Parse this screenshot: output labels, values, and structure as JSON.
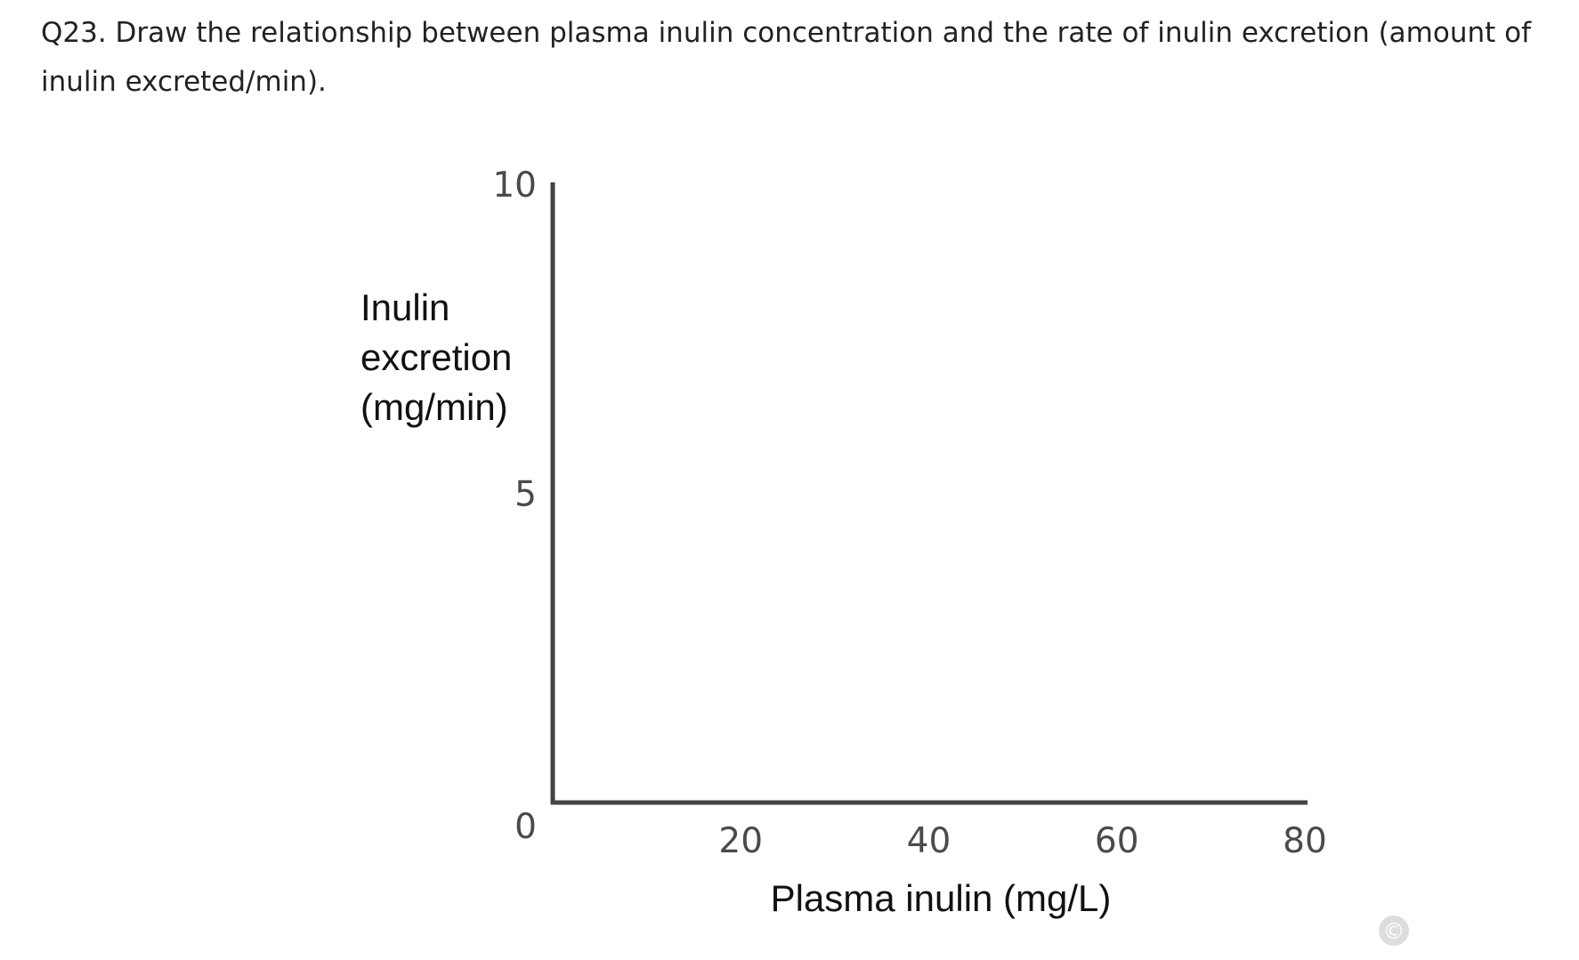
{
  "question": {
    "text": "Q23. Draw the relationship between plasma inulin concentration and the rate of inulin excretion (amount of inulin excreted/min)."
  },
  "chart_data": {
    "type": "line",
    "title": "",
    "xlabel": "Plasma inulin (mg/L)",
    "ylabel_lines": [
      "Inulin",
      "excretion",
      "(mg/min)"
    ],
    "xlim": [
      0,
      80
    ],
    "ylim": [
      0,
      10
    ],
    "x_ticks": [
      "20",
      "40",
      "60",
      "80"
    ],
    "y_ticks": [
      "0",
      "5",
      "10"
    ],
    "grid": false,
    "series": []
  },
  "copyright_mark": "©",
  "colors": {
    "axis": "#444444",
    "tick_text": "#4a4a4a",
    "axis_title": "#111111",
    "copyright_badge": "#dddddd"
  }
}
